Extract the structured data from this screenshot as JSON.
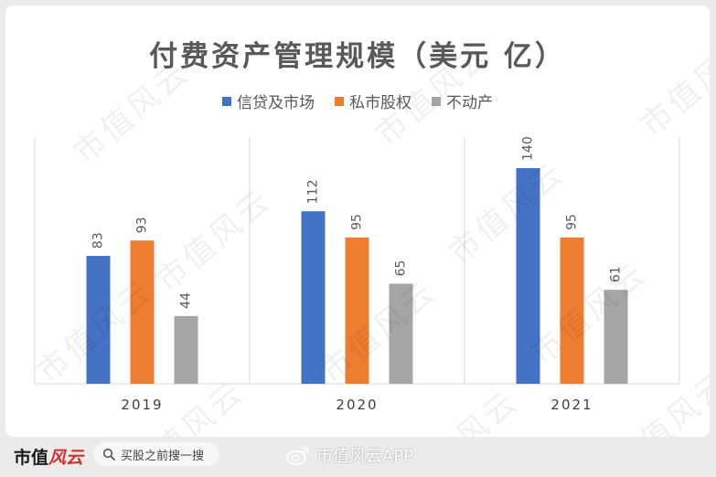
{
  "chart_data": {
    "type": "bar",
    "title": "付费资产管理规模（美元 亿）",
    "categories": [
      "2019",
      "2020",
      "2021"
    ],
    "series": [
      {
        "name": "信贷及市场",
        "color": "#4472c4",
        "values": [
          83,
          112,
          140
        ]
      },
      {
        "name": "私市股权",
        "color": "#ed7d31",
        "values": [
          93,
          95,
          95
        ]
      },
      {
        "name": "不动产",
        "color": "#a5a5a5",
        "values": [
          44,
          65,
          61
        ]
      }
    ],
    "ylim": [
      0,
      160
    ],
    "grid": false,
    "legend": "top",
    "data_labels": true
  },
  "watermark_text": "市值风云",
  "footer": {
    "brand_black": "市值",
    "brand_red": "风云",
    "search_placeholder": "买股之前搜一搜",
    "weibo_text": "市值风云APP"
  }
}
